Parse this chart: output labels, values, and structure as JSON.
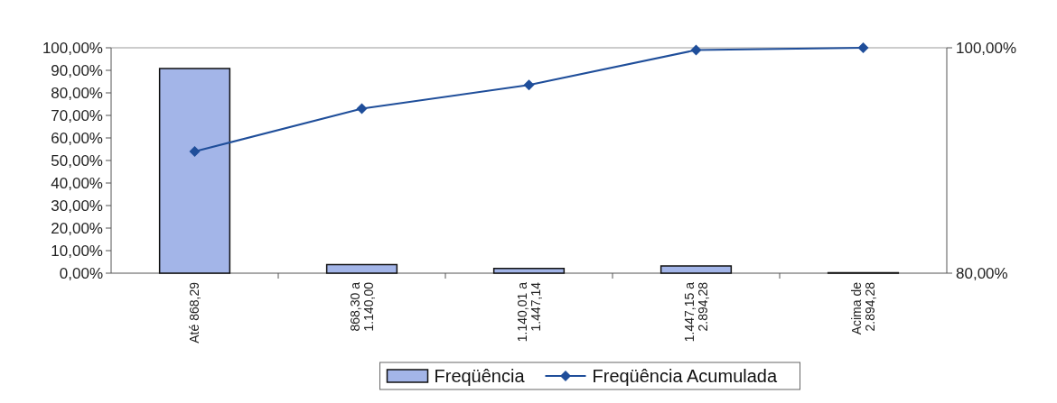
{
  "chart_data": {
    "type": "bar",
    "categories": [
      "Até 868,29",
      "868,30 a\n1.140,00",
      "1.140,01 a\n1.447,14",
      "1.447,15 a\n2.894,28",
      "Acima de\n2.894,28"
    ],
    "series": [
      {
        "name": "Freqüência",
        "color": "#a3b5e8",
        "values": [
          90.8,
          3.8,
          2.1,
          3.2,
          0.2
        ]
      },
      {
        "name": "Freqüência Acumulada",
        "type": "line",
        "axis": "y2",
        "color": "#1f4e9a",
        "marker": "diamond",
        "values": [
          90.8,
          94.6,
          96.7,
          99.8,
          100
        ]
      }
    ],
    "ylim": [
      0,
      100
    ],
    "yticks": [
      {
        "value": 0,
        "label": "0,00%"
      },
      {
        "value": 10,
        "label": "10,00%"
      },
      {
        "value": 20,
        "label": "20,00%"
      },
      {
        "value": 30,
        "label": "30,00%"
      },
      {
        "value": 40,
        "label": "40,00%"
      },
      {
        "value": 50,
        "label": "50,00%"
      },
      {
        "value": 60,
        "label": "60,00%"
      },
      {
        "value": 70,
        "label": "70,00%"
      },
      {
        "value": 80,
        "label": "80,00%"
      },
      {
        "value": 90,
        "label": "90,00%"
      },
      {
        "value": 100,
        "label": "100,00%"
      }
    ],
    "y2lim": [
      80,
      100
    ],
    "y2ticks": [
      {
        "value": 80,
        "label": "80,00%"
      },
      {
        "value": 100,
        "label": "100,00%"
      }
    ],
    "grid": false,
    "legend": "bottom"
  }
}
